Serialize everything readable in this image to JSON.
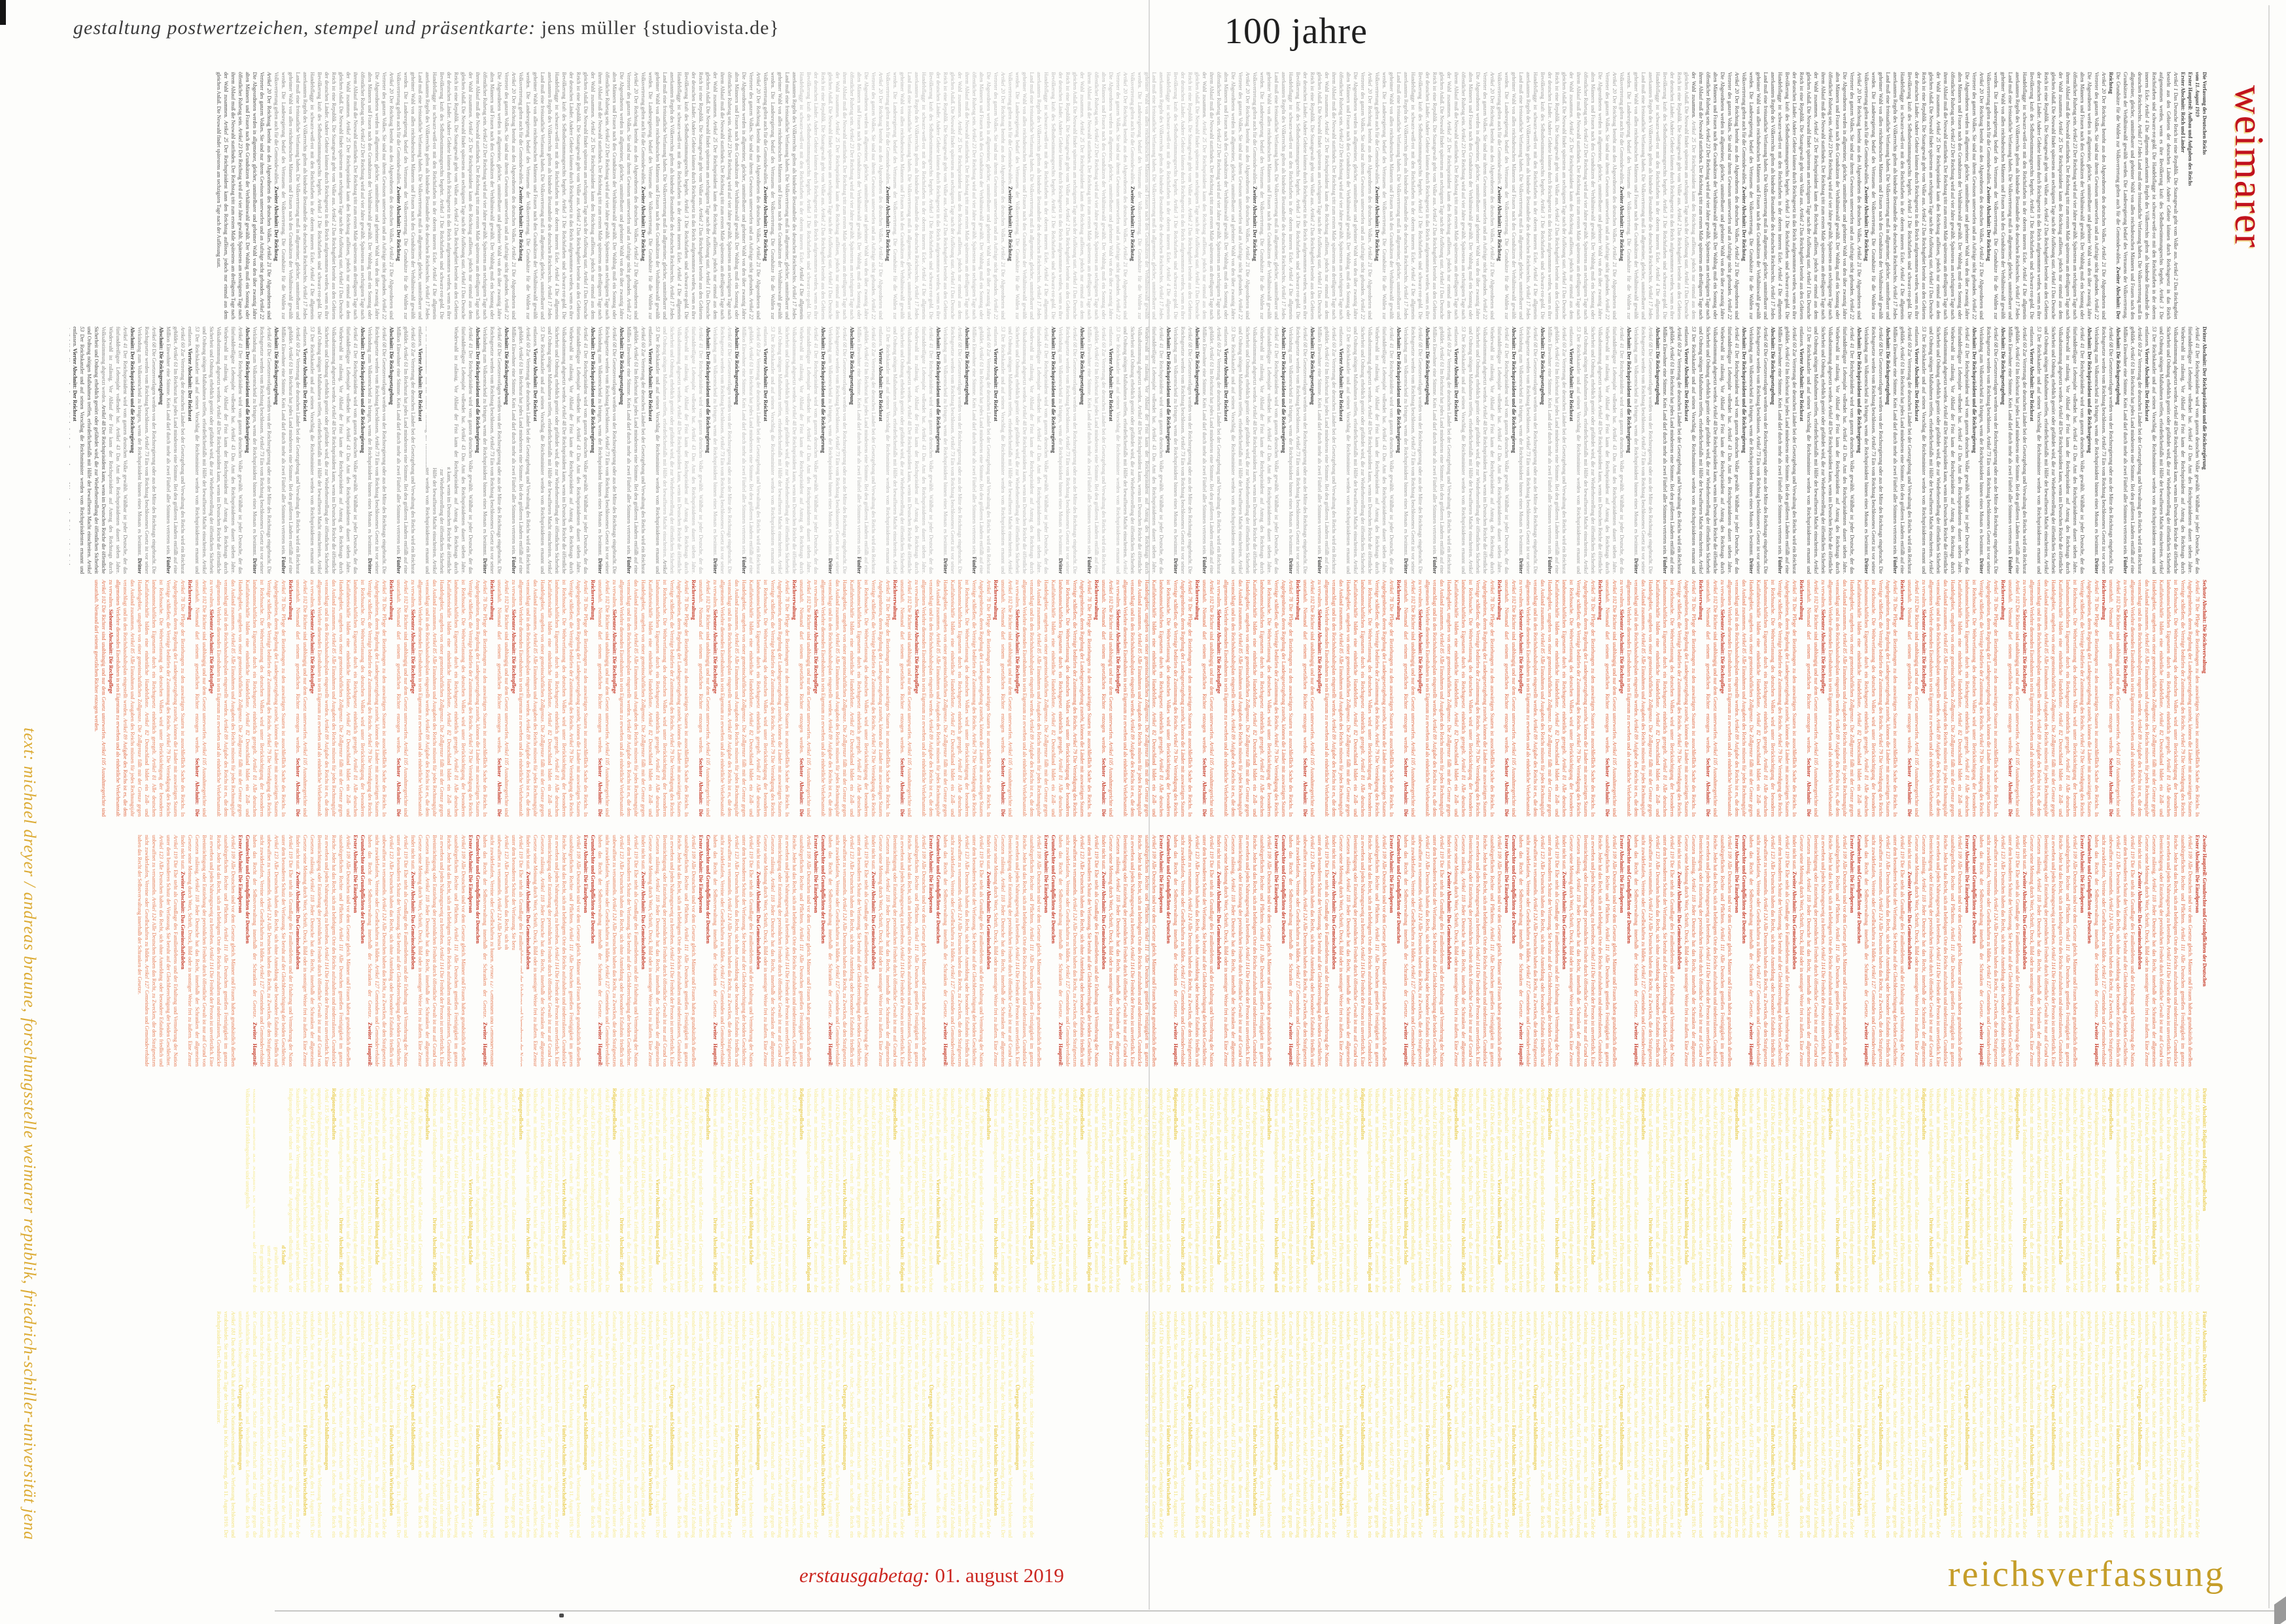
{
  "artwork": {
    "designer_credit": {
      "italic": "gestaltung postwertzeichen, stempel und präsentkarte: ",
      "roman": "jens müller {studiovista.de}"
    },
    "title_top": "100 jahre",
    "title_right_vertical": "weimarer",
    "title_bottom_right": "reichsverfassung",
    "issue_date": {
      "italic": "erstausgabetag: ",
      "roman": "01. august 2019"
    },
    "text_credit_vertical": "text: michael dreyer / andreas braune, forschungsstelle weimarer republik, friedrich-schiller-universität jena"
  },
  "theme": {
    "red_accent": "#c1121d",
    "gold_accent": "#c59d28",
    "date_red": "#cb2620",
    "credit_gold": "#dcab34",
    "band_black": "#4a4a4a",
    "band_red": "#df6038",
    "band_yellow": "#f3e173"
  },
  "constitution": {
    "bands": [
      {
        "name": "black-1",
        "theme": "black",
        "intro": [
          {
            "t": "Die Verfassung des Deutschen Reichs",
            "s": "hb",
            "br": true
          },
          {
            "t": "vom 11. August 1919",
            "s": "hi",
            "br": true
          },
          {
            "t": "Erster Hauptteil: Aufbau und Aufgaben des Reichs",
            "s": "hb",
            "br": true
          },
          {
            "t": "Erster Abschnitt: Reich und Länder",
            "s": "hb",
            "br": true
          }
        ],
        "loop": [
          {
            "t": "Artikel 1 ",
            "s": "i"
          },
          {
            "t": "Das Deutsche Reich ist eine Republik. Die Staatsgewalt geht vom Volke aus. "
          },
          {
            "t": "Artikel 2 ",
            "s": "i"
          },
          {
            "t": "Das Reichsgebiet besteht aus den Gebieten der deutschen Länder. Andere Gebiete können durch Reichsgesetz in das Reich aufgenommen werden, wenn es ihre Bevölkerung kraft des Selbstbestimmungsrechts begehrt. "
          },
          {
            "t": "Artikel 3 ",
            "s": "i"
          },
          {
            "t": "Die Reichsfarben sind schwarz-rot-gold. Die Handelsflagge ist schwarz-weiß-rot mit den Reichsfarben in der oberen inneren Ecke. "
          },
          {
            "t": "Artikel 4 ",
            "s": "i"
          },
          {
            "t": "Die allgemein anerkannten Regeln des Völkerrechts gelten als bindende Bestandteile des deutschen Reichsrechts. "
          },
          {
            "t": "Artikel 17 ",
            "s": "i"
          },
          {
            "t": "Jedes Land muß eine freistaatliche Verfassung haben. Die Volksvertretung muß in allgemeiner, gleicher, unmittelbarer und geheimer Wahl von allen reichsdeutschen Männern und Frauen nach den Grundsätzen der Verhältniswahl gewählt werden. Die Landesregierung bedarf des Vertrauens der Volksvertretung. Die Grundsätze für die Wahlen zur Volksvertretung gelten auch für die Gemeindewahlen. "
          },
          {
            "t": "Zweiter Abschnitt: Der Reichstag",
            "s": "h",
            "br": true
          },
          {
            "t": "Artikel 20 ",
            "s": "i"
          },
          {
            "t": "Der Reichstag besteht aus den Abgeordneten des deutschen Volkes. "
          },
          {
            "t": "Artikel 21 ",
            "s": "i"
          },
          {
            "t": "Die Abgeordneten sind Vertreter des ganzen Volkes. Sie sind nur ihrem Gewissen unterworfen und an Aufträge nicht gebunden. "
          },
          {
            "t": "Artikel 22 ",
            "s": "i"
          },
          {
            "t": "Die Abgeordneten werden in allgemeiner, gleicher, unmittelbarer und geheimer Wahl von den über zwanzig Jahre alten Männern und Frauen nach den Grundsätzen der Verhältniswahl gewählt. Der Wahltag muß ein Sonntag oder öffentlicher Ruhetag sein. "
          },
          {
            "t": "Artikel 23 ",
            "s": "i"
          },
          {
            "t": "Der Reichstag wird auf vier Jahre gewählt. Spätestens am sechzigsten Tage nach ihrem Ablauf muß die Neuwahl stattfinden. Der Reichstag tritt zum ersten Male spätestens am dreißigsten Tage nach der Wahl zusammen. "
          },
          {
            "t": "Artikel 25 ",
            "s": "i"
          },
          {
            "t": "Der Reichspräsident kann den Reichstag auflösen, jedoch nur einmal aus dem gleichen Anlaß. Die Neuwahl findet spätestens am sechzigsten Tage nach der Auflösung statt. "
          }
        ]
      },
      {
        "name": "black-2",
        "theme": "black",
        "loop": [
          {
            "t": "Dritter Abschnitt: Der Reichspräsident und die Reichsregierung",
            "s": "h",
            "br": true
          },
          {
            "t": "Artikel 41 ",
            "s": "i"
          },
          {
            "t": "Der Reichspräsident wird vom ganzen deutschen Volke gewählt. Wählbar ist jeder Deutsche, der das fünfunddreißigste Lebensjahr vollendet hat. "
          },
          {
            "t": "Artikel 43 ",
            "s": "i"
          },
          {
            "t": "Das Amt des Reichspräsidenten dauert sieben Jahre. Wiederwahl ist zulässig. Vor Ablauf der Frist kann der Reichspräsident auf Antrag des Reichstags durch Volksabstimmung abgesetzt werden. "
          },
          {
            "t": "Artikel 48 ",
            "s": "i"
          },
          {
            "t": "Der Reichspräsident kann, wenn im Deutschen Reiche die öffentliche Sicherheit und Ordnung erheblich gestört oder gefährdet wird, die zur Wiederherstellung der öffentlichen Sicherheit und Ordnung nötigen Maßnahmen treffen, erforderlichenfalls mit Hilfe der bewaffneten Macht einschreiten. "
          },
          {
            "t": "Artikel 53 ",
            "s": "i"
          },
          {
            "t": "Der Reichskanzler und auf seinen Vorschlag die Reichsminister werden vom Reichspräsidenten ernannt und entlassen. "
          },
          {
            "t": "Vierter Abschnitt: Der Reichsrat",
            "s": "h",
            "br": true
          },
          {
            "t": "Artikel 60 ",
            "s": "i"
          },
          {
            "t": "Zur Vertretung der deutschen Länder bei der Gesetzgebung und Verwaltung des Reichs wird ein Reichsrat gebildet. "
          },
          {
            "t": "Artikel 61 ",
            "s": "i"
          },
          {
            "t": "Im Reichsrat hat jedes Land mindestens eine Stimme. Bei den größeren Ländern entfällt auf eine Million Einwohner eine Stimme. Kein Land darf durch mehr als zwei Fünftel aller Stimmen vertreten sein. "
          },
          {
            "t": "Fünfter Abschnitt: Die Reichsgesetzgebung",
            "s": "h",
            "br": true
          },
          {
            "t": "Artikel 68 ",
            "s": "i"
          },
          {
            "t": "Die Gesetzesvorlagen werden von der Reichsregierung oder aus der Mitte des Reichstags eingebracht. Die Reichsgesetze werden vom Reichstag beschlossen. "
          },
          {
            "t": "Artikel 73 ",
            "s": "i"
          },
          {
            "t": "Ein vom Reichstag beschlossenes Gesetz ist vor seiner Verkündung zum Volksentscheid zu bringen, wenn der Reichspräsident binnen eines Monats es bestimmt. "
          }
        ]
      },
      {
        "name": "red-1",
        "theme": "red",
        "loop": [
          {
            "t": "Sechster Abschnitt: Die Reichsverwaltung",
            "s": "h",
            "br": true
          },
          {
            "t": "Artikel 78 ",
            "s": "i"
          },
          {
            "t": "Die Pflege der Beziehungen zu den auswärtigen Staaten ist ausschließlich Sache des Reichs. In Angelegenheiten, deren Regelung der Landesgesetzgebung zusteht, können die Länder mit auswärtigen Staaten Verträge schließen; die Verträge bedürfen der Zustimmung des Reichs. "
          },
          {
            "t": "Artikel 79 ",
            "s": "i"
          },
          {
            "t": "Die Verteidigung des Reichs ist Reichssache. Die Wehrverfassung des deutschen Volkes wird unter Berücksichtigung der besonderen landsmannschaftlichen Eigenarten durch ein Reichsgesetz einheitlich geregelt. "
          },
          {
            "t": "Artikel 81 ",
            "s": "i"
          },
          {
            "t": "Alle deutschen Kauffahrteischiffe bilden eine einheitliche Handelsflotte. "
          },
          {
            "t": "Artikel 82 ",
            "s": "i"
          },
          {
            "t": "Deutschland bildet ein Zoll- und Handelsgebiet, umgeben von einer gemeinschaftlichen Zollgrenze. Die Zollgrenze fällt mit der Grenze gegen das Ausland zusammen. "
          },
          {
            "t": "Artikel 85 ",
            "s": "i"
          },
          {
            "t": "Alle Einnahmen und Ausgaben des Reichs müssen für jedes Rechnungsjahr veranschlagt und in den Reichshaushaltsplan eingestellt werden. "
          },
          {
            "t": "Artikel 89 ",
            "s": "i"
          },
          {
            "t": "Aufgabe des Reichs ist es, die dem allgemeinen Verkehre dienenden Eisenbahnen in sein Eigentum zu erwerben und als einheitliche Verkehrsanstalt zu verwalten. "
          },
          {
            "t": "Siebenter Abschnitt: Die Rechtspflege",
            "s": "h",
            "br": true
          },
          {
            "t": "Artikel 102 ",
            "s": "i"
          },
          {
            "t": "Die Richter sind unabhängig und nur dem Gesetz unterworfen. "
          },
          {
            "t": "Artikel 105 ",
            "s": "i"
          },
          {
            "t": "Ausnahmegerichte sind unstatthaft. Niemand darf seinem gesetzlichen Richter entzogen werden. "
          }
        ]
      },
      {
        "name": "red-2",
        "theme": "red",
        "loop": [
          {
            "t": "Zweiter Hauptteil: Grundrechte und Grundpflichten der Deutschen",
            "s": "h",
            "br": true
          },
          {
            "t": "Erster Abschnitt: Die Einzelperson",
            "s": "h",
            "br": true
          },
          {
            "t": "Artikel 109 ",
            "s": "i"
          },
          {
            "t": "Alle Deutschen sind vor dem Gesetze gleich. Männer und Frauen haben grundsätzlich dieselben staatsbürgerlichen Rechte und Pflichten. "
          },
          {
            "t": "Artikel 111 ",
            "s": "i"
          },
          {
            "t": "Alle Deutschen genießen Freizügigkeit im ganzen Reiche. Jeder hat das Recht, sich an beliebigem Orte des Reichs aufzuhalten und niederzulassen, Grundstücke zu erwerben und jeden Nahrungszweig zu betreiben. "
          },
          {
            "t": "Artikel 114 ",
            "s": "i"
          },
          {
            "t": "Die Freiheit der Person ist unverletzlich. Eine Beeinträchtigung oder Entziehung der persönlichen Freiheit durch öffentliche Gewalt ist nur auf Grund von Gesetzen zulässig. "
          },
          {
            "t": "Artikel 118 ",
            "s": "i"
          },
          {
            "t": "Jeder Deutsche hat das Recht, innerhalb der Schranken der allgemeinen Gesetze seine Meinung durch Wort, Schrift, Druck, Bild oder in sonstiger Weise frei zu äußern. Eine Zensur findet nicht statt. "
          },
          {
            "t": "Zweiter Abschnitt: Das Gemeinschaftsleben",
            "s": "h",
            "br": true
          },
          {
            "t": "Artikel 119 ",
            "s": "i"
          },
          {
            "t": "Die Ehe steht als Grundlage des Familienlebens und der Erhaltung und Vermehrung der Nation unter dem besonderen Schutz der Verfassung. Sie beruht auf der Gleichberechtigung der beiden Geschlechter. "
          },
          {
            "t": "Artikel 123 ",
            "s": "i"
          },
          {
            "t": "Alle Deutschen haben das Recht, sich ohne Anmeldung oder besondere Erlaubnis friedlich und unbewaffnet zu versammeln. "
          },
          {
            "t": "Artikel 124 ",
            "s": "i"
          },
          {
            "t": "Alle Deutschen haben das Recht, zu Zwecken, die den Strafgesetzen nicht zuwiderlaufen, Vereine oder Gesellschaften zu bilden. "
          },
          {
            "t": "Artikel 127 ",
            "s": "i"
          },
          {
            "t": "Gemeinden und Gemeindeverbände haben das Recht der Selbstverwaltung innerhalb der Schranken der Gesetze. "
          }
        ]
      },
      {
        "name": "yellow-1",
        "theme": "yellow",
        "loop": [
          {
            "t": "Dritter Abschnitt: Religion und Religionsgesellschaften",
            "s": "h",
            "br": true
          },
          {
            "t": "Artikel 135 ",
            "s": "i"
          },
          {
            "t": "Alle Bewohner des Reichs genießen volle Glaubens- und Gewissensfreiheit. Die ungestörte Religionsübung wird durch die Verfassung gewährleistet und steht unter staatlichem Schutz. "
          },
          {
            "t": "Artikel 136 ",
            "s": "i"
          },
          {
            "t": "Die bürgerlichen und staatsbürgerlichen Rechte und Pflichten werden durch die Ausübung der Religionsfreiheit weder bedingt noch beschränkt. "
          },
          {
            "t": "Artikel 137 ",
            "s": "i"
          },
          {
            "t": "Es besteht keine Staatskirche. Die Freiheit der Vereinigung zu Religionsgesellschaften wird gewährleistet. Jede Religionsgesellschaft ordnet und verwaltet ihre Angelegenheiten selbständig innerhalb der Schranken des für alle geltenden Gesetzes. "
          },
          {
            "t": "Vierter Abschnitt: Bildung und Schule",
            "s": "h",
            "br": true
          },
          {
            "t": "Artikel 142 ",
            "s": "i"
          },
          {
            "t": "Die Kunst, die Wissenschaft und ihre Lehre sind frei. Der Staat gewährt ihnen Schutz und nimmt an ihrer Pflege teil. "
          },
          {
            "t": "Artikel 144 ",
            "s": "i"
          },
          {
            "t": "Das gesamte Schulwesen steht unter der Aufsicht des Staates. "
          },
          {
            "t": "Artikel 145 ",
            "s": "i"
          },
          {
            "t": "Es besteht allgemeine Schulpflicht. Ihrer Erfüllung dient grundsätzlich die Volksschule mit mindestens acht Schuljahren. Der Unterricht und die Lernmittel in den Volksschulen und Fortbildungsschulen sind unentgeltlich. "
          }
        ]
      },
      {
        "name": "yellow-2",
        "theme": "yellow",
        "loop": [
          {
            "t": "Fünfter Abschnitt: Das Wirtschaftsleben",
            "s": "h",
            "br": true
          },
          {
            "t": "Artikel 151 ",
            "s": "i"
          },
          {
            "t": "Die Ordnung des Wirtschaftslebens muß den Grundsätzen der Gerechtigkeit mit dem Ziele der Gewährleistung eines menschenwürdigen Daseins für alle entsprechen. In diesen Grenzen ist die wirtschaftliche Freiheit des Einzelnen zu sichern. "
          },
          {
            "t": "Artikel 153 ",
            "s": "i"
          },
          {
            "t": "Das Eigentum wird von der Verfassung gewährleistet. Sein Inhalt und seine Schranken ergeben sich aus den Gesetzen. Eigentum verpflichtet. Sein Gebrauch soll zugleich Dienst sein für das Gemeine Beste. "
          },
          {
            "t": "Artikel 157 ",
            "s": "i"
          },
          {
            "t": "Die Arbeitskraft steht unter dem besonderen Schutz des Reichs. Das Reich schafft ein einheitliches Arbeitsrecht. "
          },
          {
            "t": "Artikel 161 ",
            "s": "i"
          },
          {
            "t": "Zur Erhaltung der Gesundheit und Arbeitsfähigkeit, zum Schutze der Mutterschaft und zur Vorsorge gegen die wirtschaftlichen Folgen von Alter, Schwäche und Wechselfällen des Lebens schafft das Reich ein umfassendes Versicherungswesen. "
          },
          {
            "t": "Übergangs- und Schlußbestimmungen",
            "s": "h",
            "br": true
          },
          {
            "t": "Artikel 181 ",
            "s": "i"
          },
          {
            "t": "Das deutsche Volk hat durch seine Nationalversammlung diese Verfassung beschlossen und verabschiedet. Sie tritt mit dem Tage der Verkündung in Kraft. Schwarzburg, den 11. August 1919. Der Reichspräsident Ebert. Das Reichsministerium Bauer. "
          }
        ]
      }
    ]
  }
}
